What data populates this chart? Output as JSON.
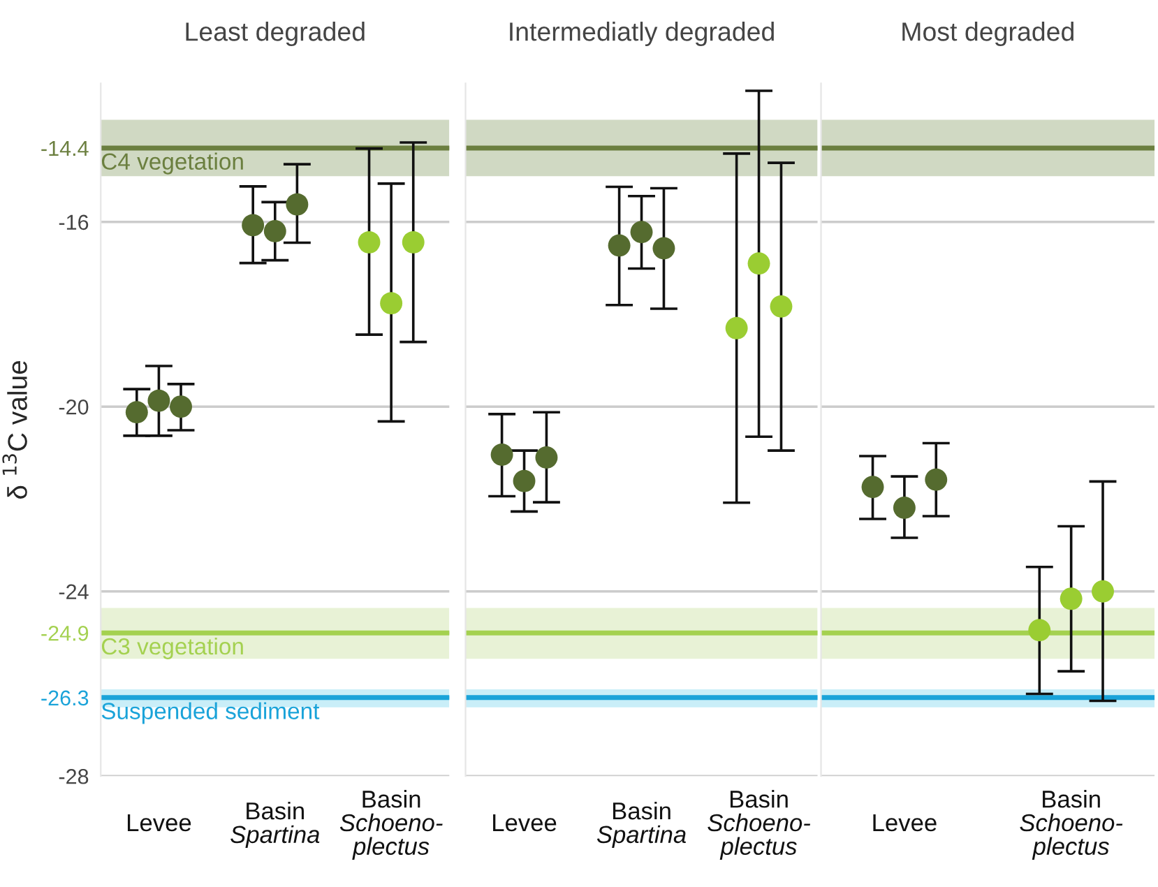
{
  "chart_data": [
    {
      "type": "scatter",
      "title": "Least degraded",
      "ylabel": "δ $^{13}$C value",
      "categories": [
        "Levee",
        "Basin\nSpartina",
        "Basin\nSchoeno-\nplectus"
      ],
      "series": [
        {
          "colors": [
            "#556b2f",
            "#556b2f",
            "#9acd32"
          ],
          "values": [
            -20.12,
            -16.07,
            -16.44
          ],
          "errors": [
            [
              -20.63,
              -19.62
            ],
            [
              -16.89,
              -15.23
            ],
            [
              -18.44,
              -14.41
            ]
          ]
        },
        {
          "colors": [
            "#556b2f",
            "#556b2f",
            "#9acd32"
          ],
          "values": [
            -19.87,
            -16.2,
            -17.76
          ],
          "errors": [
            [
              -20.63,
              -19.12
            ],
            [
              -16.83,
              -15.57
            ],
            [
              -20.32,
              -15.17
            ]
          ]
        },
        {
          "colors": [
            "#556b2f",
            "#556b2f",
            "#9acd32"
          ],
          "values": [
            -20.0,
            -15.62,
            -16.44
          ],
          "errors": [
            [
              -20.51,
              -19.51
            ],
            [
              -16.45,
              -14.75
            ],
            [
              -18.6,
              -14.28
            ]
          ]
        }
      ],
      "ylim": [
        -28,
        -13.0
      ],
      "yticks": [
        -28,
        -26.3,
        -24.9,
        -24,
        -20,
        -16,
        -14.4
      ],
      "grid": "y",
      "marker": "circle",
      "bands": [
        {
          "axis": "y",
          "from": -15.01,
          "to": -13.79,
          "color": "#d0d9c3"
        },
        {
          "axis": "y",
          "from": -25.46,
          "to": -24.36,
          "color": "#e8f2d6"
        },
        {
          "axis": "y",
          "from": -26.51,
          "to": -26.12,
          "color": "#c9eef8"
        }
      ],
      "ref_lines": [
        {
          "axis": "y",
          "value": -14.4,
          "label": "C4 vegetation",
          "color": "#6b7f3f"
        },
        {
          "axis": "y",
          "value": -24.9,
          "label": "C3 vegetation",
          "color": "#a4d150"
        },
        {
          "axis": "y",
          "value": -26.3,
          "label": "Suspended sediment",
          "color": "#1aa3d9"
        }
      ]
    },
    {
      "type": "scatter",
      "title": "Intermediatly degraded",
      "categories": [
        "Levee",
        "Basin\nSpartina",
        "Basin\nSchoeno-\nplectus"
      ],
      "series": [
        {
          "colors": [
            "#556b2f",
            "#556b2f",
            "#9acd32"
          ],
          "values": [
            -21.04,
            -16.51,
            -18.3
          ],
          "errors": [
            [
              -21.94,
              -20.16
            ],
            [
              -17.8,
              -15.24
            ],
            [
              -22.08,
              -14.52
            ]
          ]
        },
        {
          "colors": [
            "#556b2f",
            "#556b2f",
            "#9acd32"
          ],
          "values": [
            -21.61,
            -16.22,
            -16.9
          ],
          "errors": [
            [
              -22.27,
              -20.95
            ],
            [
              -17.01,
              -15.44
            ],
            [
              -20.65,
              -13.16
            ]
          ]
        },
        {
          "colors": [
            "#556b2f",
            "#556b2f",
            "#9acd32"
          ],
          "values": [
            -21.1,
            -16.57,
            -17.83
          ],
          "errors": [
            [
              -22.07,
              -20.12
            ],
            [
              -17.88,
              -15.27
            ],
            [
              -20.95,
              -14.72
            ]
          ]
        }
      ],
      "ylim": [
        -28,
        -13.0
      ],
      "yticks": [
        -28,
        -24,
        -20,
        -16
      ],
      "tick_labels": "x",
      "grid": "y",
      "marker": "circle",
      "bands": [
        {
          "axis": "y",
          "from": -15.01,
          "to": -13.79,
          "color": "#d0d9c3"
        },
        {
          "axis": "y",
          "from": -25.46,
          "to": -24.36,
          "color": "#e8f2d6"
        },
        {
          "axis": "y",
          "from": -26.51,
          "to": -26.12,
          "color": "#c9eef8"
        }
      ],
      "ref_lines": [
        {
          "axis": "y",
          "value": -14.4,
          "color": "#6b7f3f"
        },
        {
          "axis": "y",
          "value": -24.9,
          "color": "#a4d150"
        },
        {
          "axis": "y",
          "value": -26.3,
          "color": "#1aa3d9"
        }
      ]
    },
    {
      "type": "scatter",
      "title": "Most degraded",
      "categories": [
        "Levee",
        "Basin\nSchoeno-\nplectus"
      ],
      "series": [
        {
          "colors": [
            "#556b2f",
            "#9acd32"
          ],
          "values": [
            -21.74,
            -24.84
          ],
          "errors": [
            [
              -22.43,
              -21.07
            ],
            [
              -26.22,
              -23.47
            ]
          ]
        },
        {
          "colors": [
            "#556b2f",
            "#9acd32"
          ],
          "values": [
            -22.19,
            -24.16
          ],
          "errors": [
            [
              -22.84,
              -21.51
            ],
            [
              -25.73,
              -22.59
            ]
          ]
        },
        {
          "colors": [
            "#556b2f",
            "#9acd32"
          ],
          "values": [
            -21.58,
            -24.0
          ],
          "errors": [
            [
              -22.37,
              -20.79
            ],
            [
              -26.37,
              -21.62
            ]
          ]
        }
      ],
      "ylim": [
        -28,
        -13.0
      ],
      "yticks": [
        -28,
        -24,
        -20,
        -16
      ],
      "tick_labels": "x",
      "grid": "y",
      "marker": "circle",
      "bands": [
        {
          "axis": "y",
          "from": -15.01,
          "to": -13.79,
          "color": "#d0d9c3"
        },
        {
          "axis": "y",
          "from": -25.46,
          "to": -24.36,
          "color": "#e8f2d6"
        },
        {
          "axis": "y",
          "from": -26.51,
          "to": -26.12,
          "color": "#c9eef8"
        }
      ],
      "ref_lines": [
        {
          "axis": "y",
          "value": -14.4,
          "color": "#6b7f3f"
        },
        {
          "axis": "y",
          "value": -24.9,
          "color": "#a4d150"
        },
        {
          "axis": "y",
          "value": -26.3,
          "color": "#1aa3d9"
        }
      ]
    }
  ]
}
